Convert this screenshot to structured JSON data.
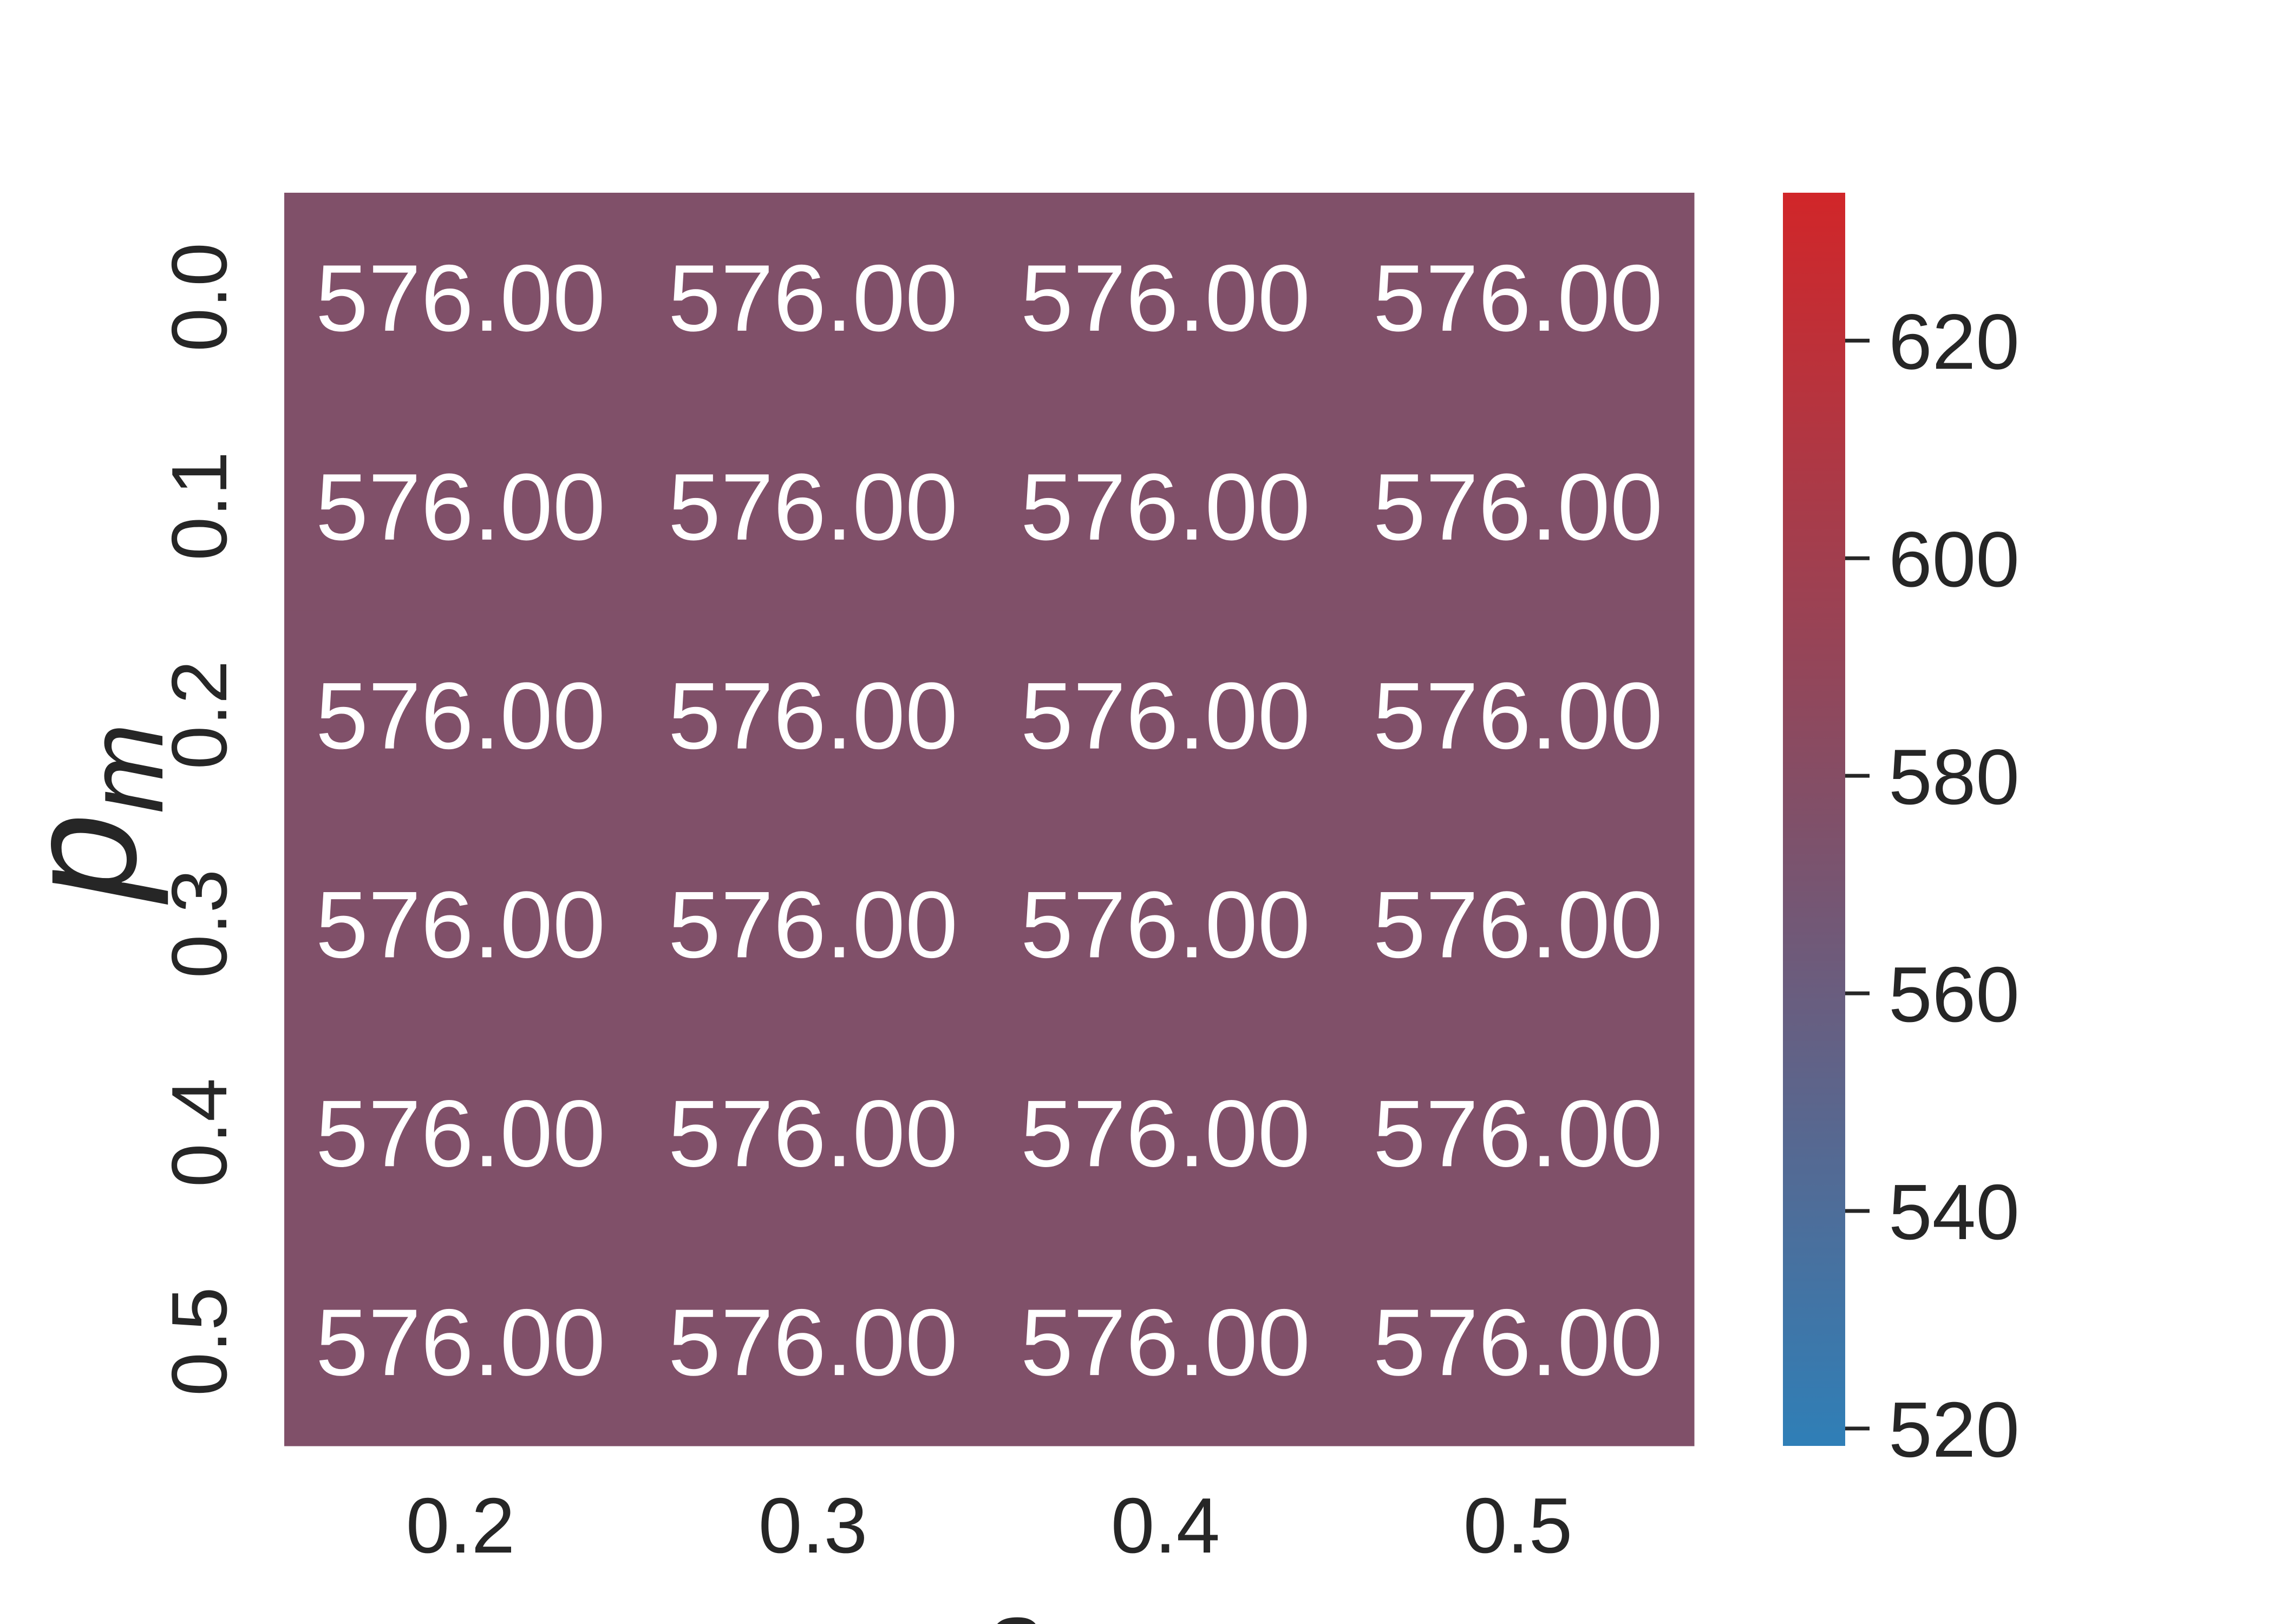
{
  "chart_data": {
    "type": "heatmap",
    "xlabel": "s",
    "ylabel": {
      "text": "p",
      "subscript": "m"
    },
    "categories": [
      "0.2",
      "0.3",
      "0.4",
      "0.5"
    ],
    "rows": [
      "0.0",
      "0.1",
      "0.2",
      "0.3",
      "0.4",
      "0.5"
    ],
    "values": [
      [
        576,
        576,
        576,
        576
      ],
      [
        576,
        576,
        576,
        576
      ],
      [
        576,
        576,
        576,
        576
      ],
      [
        576,
        576,
        576,
        576
      ],
      [
        576,
        576,
        576,
        576
      ],
      [
        576,
        576,
        576,
        576
      ]
    ],
    "value_labels": [
      [
        "576.00",
        "576.00",
        "576.00",
        "576.00"
      ],
      [
        "576.00",
        "576.00",
        "576.00",
        "576.00"
      ],
      [
        "576.00",
        "576.00",
        "576.00",
        "576.00"
      ],
      [
        "576.00",
        "576.00",
        "576.00",
        "576.00"
      ],
      [
        "576.00",
        "576.00",
        "576.00",
        "576.00"
      ],
      [
        "576.00",
        "576.00",
        "576.00",
        "576.00"
      ]
    ],
    "colormap": [
      "#2f7fb7",
      "#805069",
      "#d12629"
    ],
    "clim": [
      518.4,
      633.6
    ],
    "cticks": [
      520,
      540,
      560,
      580,
      600,
      620
    ]
  }
}
